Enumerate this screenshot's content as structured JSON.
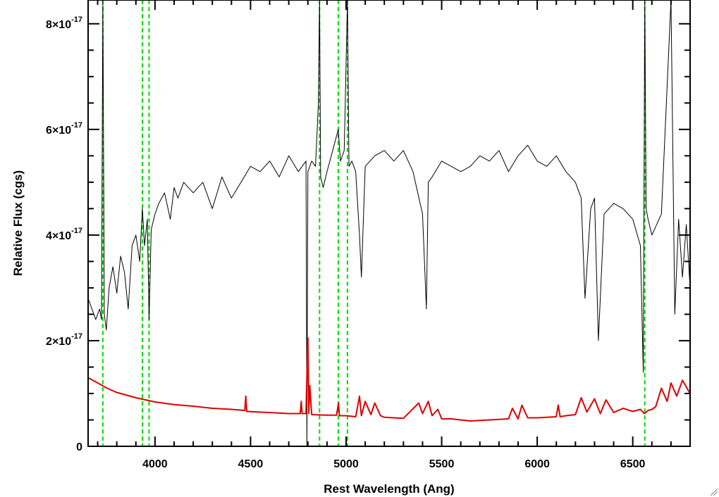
{
  "chart_data": {
    "type": "line",
    "xlabel": "Rest Wavelength (Ang)",
    "ylabel": "Relative Flux (cgs)",
    "xlim": [
      3650,
      6800
    ],
    "ylim": [
      0,
      8.45e-17
    ],
    "x_ticks": [
      4000,
      4500,
      5000,
      5500,
      6000,
      6500
    ],
    "x_tick_labels": [
      "4000",
      "4500",
      "5000",
      "5500",
      "6000",
      "6500"
    ],
    "y_ticks": [
      0,
      2e-17,
      4e-17,
      6e-17,
      8e-17
    ],
    "y_tick_labels": [
      {
        "mantissa": "0",
        "exponent": ""
      },
      {
        "mantissa": "2×10",
        "exponent": "-17"
      },
      {
        "mantissa": "4×10",
        "exponent": "-17"
      },
      {
        "mantissa": "6×10",
        "exponent": "-17"
      },
      {
        "mantissa": "8×10",
        "exponent": "-17"
      }
    ],
    "grid": false,
    "reference_lines": {
      "color": "#00dd00",
      "style": "dashed",
      "x": [
        3727,
        3934,
        3969,
        4861,
        4959,
        5007,
        6563
      ]
    },
    "series": [
      {
        "color": "#000000",
        "x": [
          3650,
          3670,
          3690,
          3710,
          3720,
          3727,
          3735,
          3745,
          3760,
          3780,
          3800,
          3820,
          3840,
          3860,
          3880,
          3900,
          3920,
          3934,
          3945,
          3960,
          3969,
          3980,
          4000,
          4020,
          4050,
          4080,
          4100,
          4120,
          4150,
          4200,
          4250,
          4300,
          4350,
          4400,
          4450,
          4500,
          4550,
          4600,
          4650,
          4700,
          4750,
          4790,
          4795,
          4800,
          4820,
          4840,
          4855,
          4861,
          4867,
          4880,
          4900,
          4930,
          4959,
          4970,
          4990,
          5007,
          5015,
          5030,
          5050,
          5070,
          5080,
          5100,
          5150,
          5200,
          5250,
          5300,
          5350,
          5400,
          5420,
          5430,
          5450,
          5500,
          5550,
          5600,
          5650,
          5700,
          5750,
          5800,
          5850,
          5900,
          5950,
          6000,
          6050,
          6100,
          6150,
          6200,
          6230,
          6250,
          6280,
          6300,
          6320,
          6350,
          6400,
          6450,
          6500,
          6540,
          6555,
          6563,
          6570,
          6580,
          6600,
          6650,
          6700,
          6720,
          6740,
          6760,
          6780,
          6800
        ],
        "y": [
          2.8e-17,
          2.6e-17,
          2.4e-17,
          2.6e-17,
          2.4e-17,
          9.5e-17,
          2.5e-17,
          2.2e-17,
          3e-17,
          3.4e-17,
          2.9e-17,
          3.6e-17,
          3.3e-17,
          2.6e-17,
          3.8e-17,
          4e-17,
          3.5e-17,
          4.5e-17,
          3.8e-17,
          4.3e-17,
          2.4e-17,
          4.1e-17,
          4.4e-17,
          4.6e-17,
          4.8e-17,
          4.3e-17,
          4.9e-17,
          4.7e-17,
          5e-17,
          4.8e-17,
          5e-17,
          4.5e-17,
          5.1e-17,
          4.7e-17,
          5e-17,
          5.3e-17,
          5.2e-17,
          5.4e-17,
          5.1e-17,
          5.5e-17,
          5.2e-17,
          5.4e-17,
          0.0,
          5.2e-17,
          5.4e-17,
          5.3e-17,
          6.5e-17,
          9.5e-17,
          5.1e-17,
          4.9e-17,
          5.2e-17,
          5.6e-17,
          6e-17,
          5.4e-17,
          5.6e-17,
          9.5e-17,
          5.3e-17,
          5.4e-17,
          5.2e-17,
          4e-17,
          3.2e-17,
          5.3e-17,
          5.5e-17,
          5.6e-17,
          5.4e-17,
          5.6e-17,
          5.2e-17,
          4.4e-17,
          2.6e-17,
          5e-17,
          5.1e-17,
          5.4e-17,
          5.3e-17,
          5.2e-17,
          5.3e-17,
          5.5e-17,
          5.4e-17,
          5.6e-17,
          5.2e-17,
          5.5e-17,
          5.7e-17,
          5.4e-17,
          5.3e-17,
          5.5e-17,
          5.2e-17,
          5e-17,
          4.7e-17,
          2.8e-17,
          4.5e-17,
          4.7e-17,
          2e-17,
          4.4e-17,
          4.6e-17,
          4.5e-17,
          4.3e-17,
          3.8e-17,
          1.4e-17,
          9.5e-17,
          4.5e-17,
          4.3e-17,
          4e-17,
          4.4e-17,
          9.5e-17,
          2.5e-17,
          4.3e-17,
          3.2e-17,
          4.2e-17,
          3e-17
        ]
      },
      {
        "color": "#dd0000",
        "x": [
          3650,
          3700,
          3750,
          3800,
          3900,
          4000,
          4100,
          4200,
          4300,
          4400,
          4470,
          4475,
          4480,
          4600,
          4700,
          4760,
          4765,
          4770,
          4790,
          4800,
          4805,
          4810,
          4820,
          4900,
          4950,
          4960,
          4965,
          4970,
          5000,
          5050,
          5070,
          5080,
          5100,
          5130,
          5150,
          5180,
          5200,
          5300,
          5380,
          5400,
          5430,
          5450,
          5480,
          5500,
          5550,
          5600,
          5650,
          5700,
          5750,
          5800,
          5850,
          5870,
          5900,
          5920,
          5950,
          6000,
          6050,
          6100,
          6110,
          6120,
          6150,
          6200,
          6230,
          6260,
          6300,
          6330,
          6360,
          6400,
          6450,
          6500,
          6540,
          6560,
          6580,
          6600,
          6620,
          6650,
          6680,
          6700,
          6730,
          6760,
          6800
        ],
        "y": [
          1.3e-17,
          1.2e-17,
          1.1e-17,
          1.02e-17,
          9.2e-18,
          8.4e-18,
          7.9e-18,
          7.6e-18,
          7.2e-18,
          7e-18,
          6.8e-18,
          9.5e-18,
          6.6e-18,
          6.4e-18,
          6.2e-18,
          6.2e-18,
          8.5e-18,
          6.2e-18,
          6.2e-18,
          2.05e-17,
          6.2e-18,
          1.15e-17,
          6e-18,
          5.9e-18,
          5.9e-18,
          8.2e-18,
          5.8e-18,
          5.8e-18,
          5.8e-18,
          5.6e-18,
          9.5e-18,
          5.8e-18,
          8.5e-18,
          6e-18,
          8.2e-18,
          5.8e-18,
          5.5e-18,
          5.3e-18,
          8.2e-18,
          6.2e-18,
          8.5e-18,
          5.8e-18,
          7e-18,
          5.2e-18,
          5.2e-18,
          5e-18,
          4.8e-18,
          4.9e-18,
          5e-18,
          5.1e-18,
          5.2e-18,
          7.2e-18,
          5.2e-18,
          7.8e-18,
          5.4e-18,
          5.4e-18,
          5.5e-18,
          5.6e-18,
          7.8e-18,
          5.6e-18,
          5.8e-18,
          6e-18,
          9.2e-18,
          6.5e-18,
          9e-18,
          6.2e-18,
          8.8e-18,
          6.4e-18,
          7.2e-18,
          6.6e-18,
          7e-18,
          6.2e-18,
          6.8e-18,
          7e-18,
          7.5e-18,
          1.1e-17,
          8.5e-18,
          1.2e-17,
          9.5e-18,
          1.25e-17,
          1e-17
        ]
      }
    ]
  }
}
